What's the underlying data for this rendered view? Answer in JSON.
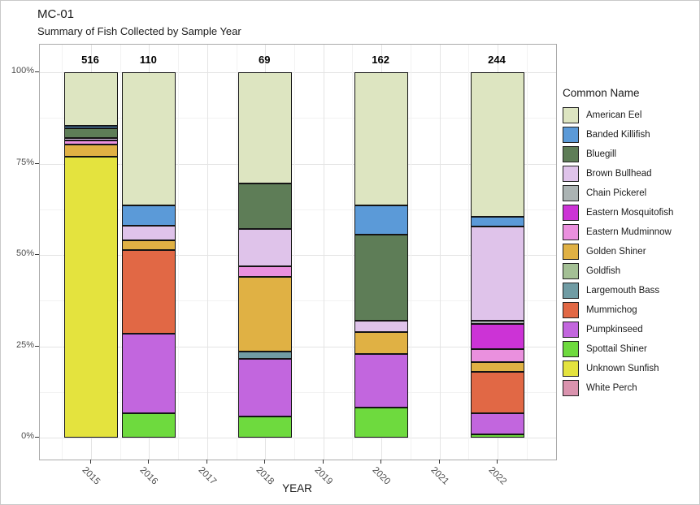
{
  "header": {
    "title": "MC-01",
    "subtitle": "Summary of Fish Collected by Sample Year"
  },
  "chart_data": {
    "type": "bar",
    "variant": "stacked-percent",
    "title": "MC-01",
    "subtitle": "Summary of Fish Collected by Sample Year",
    "xlabel": "YEAR",
    "ylabel": "",
    "ylim": [
      0,
      100
    ],
    "grid": true,
    "legend_title": "Common Name",
    "legend_position": "right",
    "x_ticks": [
      "2015",
      "2016",
      "2017",
      "2018",
      "2019",
      "2020",
      "2021",
      "2022"
    ],
    "y_ticks": [
      {
        "label": "0%",
        "value": 0
      },
      {
        "label": "25%",
        "value": 25
      },
      {
        "label": "50%",
        "value": 50
      },
      {
        "label": "75%",
        "value": 75
      },
      {
        "label": "100%",
        "value": 100
      }
    ],
    "y_minor_ticks": [
      12.5,
      37.5,
      62.5,
      87.5
    ],
    "species": [
      {
        "name": "American Eel",
        "color": "#dde5c1"
      },
      {
        "name": "Banded Killifish",
        "color": "#5b9ad8"
      },
      {
        "name": "Bluegill",
        "color": "#5e7d57"
      },
      {
        "name": "Brown Bullhead",
        "color": "#dfc3ea"
      },
      {
        "name": "Chain Pickerel",
        "color": "#abb3b3"
      },
      {
        "name": "Eastern Mosquitofish",
        "color": "#cc33d6"
      },
      {
        "name": "Eastern Mudminnow",
        "color": "#ea90de"
      },
      {
        "name": "Golden Shiner",
        "color": "#e0b144"
      },
      {
        "name": "Goldfish",
        "color": "#a4c095"
      },
      {
        "name": "Largemouth Bass",
        "color": "#709ca4"
      },
      {
        "name": "Mummichog",
        "color": "#e16845"
      },
      {
        "name": "Pumpkinseed",
        "color": "#c266de"
      },
      {
        "name": "Spottail Shiner",
        "color": "#6eda3e"
      },
      {
        "name": "Unknown Sunfish",
        "color": "#e4e33e"
      },
      {
        "name": "White Perch",
        "color": "#da93ae"
      }
    ],
    "bars": [
      {
        "year": "2015",
        "total": 516,
        "segments_pct": {
          "American Eel": 14.6,
          "Banded Killifish": 0.8,
          "Bluegill": 2.7,
          "Brown Bullhead": 0.6,
          "Eastern Mudminnow": 1.0,
          "Golden Shiner": 3.4,
          "Unknown Sunfish": 76.9
        }
      },
      {
        "year": "2016",
        "total": 110,
        "segments_pct": {
          "American Eel": 36.4,
          "Banded Killifish": 5.5,
          "Brown Bullhead": 4.0,
          "Golden Shiner": 2.7,
          "Mummichog": 23.0,
          "Pumpkinseed": 21.8,
          "Spottail Shiner": 6.6
        }
      },
      {
        "year": "2018",
        "total": 69,
        "segments_pct": {
          "American Eel": 30.4,
          "Bluegill": 12.6,
          "Brown Bullhead": 10.2,
          "Eastern Mudminnow": 2.9,
          "Golden Shiner": 20.3,
          "Largemouth Bass": 2.0,
          "Pumpkinseed": 15.8,
          "Spottail Shiner": 5.8
        }
      },
      {
        "year": "2020",
        "total": 162,
        "segments_pct": {
          "American Eel": 36.4,
          "Banded Killifish": 8.0,
          "Bluegill": 23.6,
          "Brown Bullhead": 3.0,
          "Golden Shiner": 6.0,
          "Pumpkinseed": 14.7,
          "Spottail Shiner": 8.3
        }
      },
      {
        "year": "2022",
        "total": 244,
        "segments_pct": {
          "American Eel": 39.6,
          "Banded Killifish": 2.7,
          "Brown Bullhead": 25.6,
          "Chain Pickerel": 1.0,
          "Eastern Mosquitofish": 6.9,
          "Eastern Mudminnow": 3.6,
          "Golden Shiner": 2.5,
          "Mummichog": 11.4,
          "Pumpkinseed": 5.7,
          "Spottail Shiner": 1.0
        }
      }
    ]
  }
}
